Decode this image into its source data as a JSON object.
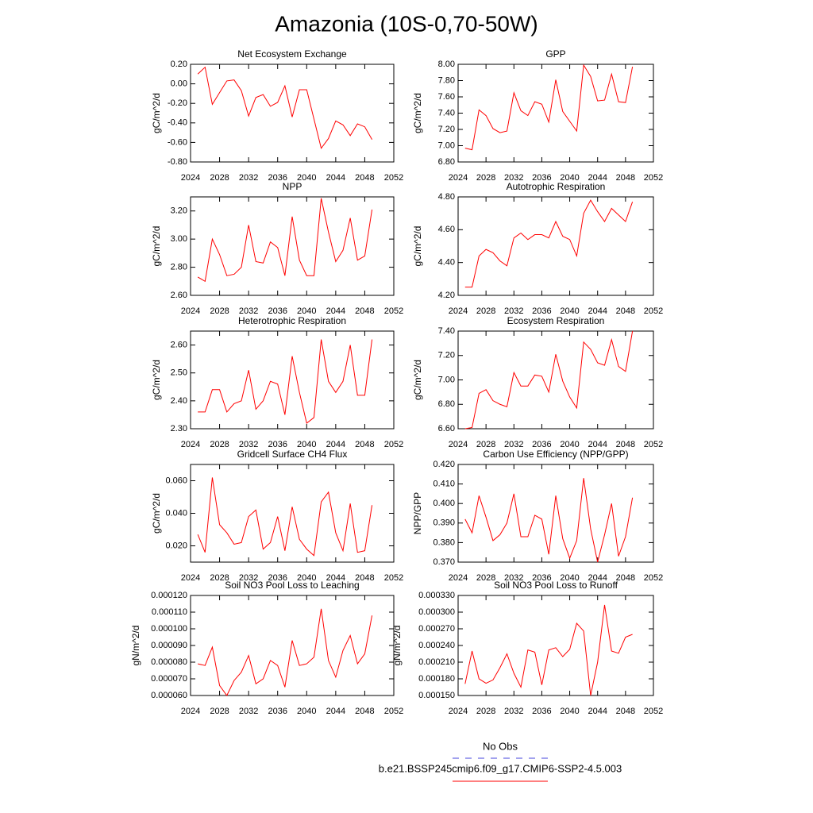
{
  "title": "Amazonia (10S-0,70-50W)",
  "legend": [
    {
      "name": "No Obs",
      "color": "#4444dd",
      "style": "dashed"
    },
    {
      "name": "b.e21.BSSP245cmip6.f09_g17.CMIP6-SSP2-4.5.003",
      "color": "#ff0000",
      "style": "solid"
    }
  ],
  "chart_data": [
    {
      "type": "line",
      "title": "Net Ecosystem Exchange",
      "y_label": "gC/m^2/d",
      "color": "#ff0000",
      "x": [
        2025,
        2026,
        2027,
        2028,
        2029,
        2030,
        2031,
        2032,
        2033,
        2034,
        2035,
        2036,
        2037,
        2038,
        2039,
        2040,
        2041,
        2042,
        2043,
        2044,
        2045,
        2046,
        2047,
        2048,
        2049
      ],
      "values": [
        0.1,
        0.17,
        -0.21,
        -0.09,
        0.03,
        0.04,
        -0.07,
        -0.33,
        -0.14,
        -0.11,
        -0.23,
        -0.19,
        -0.02,
        -0.34,
        -0.06,
        -0.06,
        -0.36,
        -0.66,
        -0.56,
        -0.38,
        -0.42,
        -0.53,
        -0.41,
        -0.44,
        -0.57
      ],
      "xlim": [
        2024,
        2052
      ],
      "xticks": [
        2024,
        2028,
        2032,
        2036,
        2040,
        2044,
        2048,
        2052
      ],
      "ylim": [
        -0.8,
        0.2
      ],
      "yticks": [
        {
          "value": 0.2,
          "label": "0.20"
        },
        {
          "value": 0,
          "label": "0.00"
        },
        {
          "value": -0.2,
          "label": "-0.20"
        },
        {
          "value": -0.4,
          "label": "-0.40"
        },
        {
          "value": -0.6,
          "label": "-0.60"
        },
        {
          "value": -0.8,
          "label": "-0.80"
        }
      ]
    },
    {
      "type": "line",
      "title": "GPP",
      "y_label": "gC/m^2/d",
      "color": "#ff0000",
      "x": [
        2025,
        2026,
        2027,
        2028,
        2029,
        2030,
        2031,
        2032,
        2033,
        2034,
        2035,
        2036,
        2037,
        2038,
        2039,
        2040,
        2041,
        2042,
        2043,
        2044,
        2045,
        2046,
        2047,
        2048,
        2049
      ],
      "values": [
        6.97,
        6.95,
        7.44,
        7.37,
        7.21,
        7.16,
        7.18,
        7.65,
        7.43,
        7.37,
        7.54,
        7.51,
        7.29,
        7.81,
        7.42,
        7.3,
        7.18,
        7.99,
        7.85,
        7.55,
        7.56,
        7.88,
        7.54,
        7.53,
        7.97
      ],
      "xlim": [
        2024,
        2052
      ],
      "xticks": [
        2024,
        2028,
        2032,
        2036,
        2040,
        2044,
        2048,
        2052
      ],
      "ylim": [
        6.8,
        8.0
      ],
      "yticks": [
        {
          "value": 8,
          "label": "8.00"
        },
        {
          "value": 7.8,
          "label": "7.80"
        },
        {
          "value": 7.6,
          "label": "7.60"
        },
        {
          "value": 7.4,
          "label": "7.40"
        },
        {
          "value": 7.2,
          "label": "7.20"
        },
        {
          "value": 7,
          "label": "7.00"
        },
        {
          "value": 6.8,
          "label": "6.80"
        }
      ]
    },
    {
      "type": "line",
      "title": "NPP",
      "y_label": "gC/m^2/d",
      "color": "#ff0000",
      "x": [
        2025,
        2026,
        2027,
        2028,
        2029,
        2030,
        2031,
        2032,
        2033,
        2034,
        2035,
        2036,
        2037,
        2038,
        2039,
        2040,
        2041,
        2042,
        2043,
        2044,
        2045,
        2046,
        2047,
        2048,
        2049
      ],
      "values": [
        2.73,
        2.7,
        3.0,
        2.89,
        2.74,
        2.75,
        2.8,
        3.1,
        2.84,
        2.83,
        2.98,
        2.94,
        2.74,
        3.16,
        2.85,
        2.74,
        2.74,
        3.29,
        3.05,
        2.84,
        2.92,
        3.15,
        2.85,
        2.88,
        3.21
      ],
      "xlim": [
        2024,
        2052
      ],
      "xticks": [
        2024,
        2028,
        2032,
        2036,
        2040,
        2044,
        2048,
        2052
      ],
      "ylim": [
        2.6,
        3.3
      ],
      "yticks": [
        {
          "value": 3.2,
          "label": "3.20"
        },
        {
          "value": 3,
          "label": "3.00"
        },
        {
          "value": 2.8,
          "label": "2.80"
        },
        {
          "value": 2.6,
          "label": "2.60"
        }
      ]
    },
    {
      "type": "line",
      "title": "Autotrophic Respiration",
      "y_label": "gC/m^2/d",
      "color": "#ff0000",
      "x": [
        2025,
        2026,
        2027,
        2028,
        2029,
        2030,
        2031,
        2032,
        2033,
        2034,
        2035,
        2036,
        2037,
        2038,
        2039,
        2040,
        2041,
        2042,
        2043,
        2044,
        2045,
        2046,
        2047,
        2048,
        2049
      ],
      "values": [
        4.25,
        4.25,
        4.44,
        4.48,
        4.46,
        4.41,
        4.38,
        4.55,
        4.58,
        4.54,
        4.57,
        4.57,
        4.55,
        4.65,
        4.56,
        4.54,
        4.44,
        4.7,
        4.78,
        4.71,
        4.65,
        4.73,
        4.69,
        4.65,
        4.77
      ],
      "xlim": [
        2024,
        2052
      ],
      "xticks": [
        2024,
        2028,
        2032,
        2036,
        2040,
        2044,
        2048,
        2052
      ],
      "ylim": [
        4.2,
        4.8
      ],
      "yticks": [
        {
          "value": 4.8,
          "label": "4.80"
        },
        {
          "value": 4.6,
          "label": "4.60"
        },
        {
          "value": 4.4,
          "label": "4.40"
        },
        {
          "value": 4.2,
          "label": "4.20"
        }
      ]
    },
    {
      "type": "line",
      "title": "Heterotrophic Respiration",
      "y_label": "gC/m^2/d",
      "color": "#ff0000",
      "x": [
        2025,
        2026,
        2027,
        2028,
        2029,
        2030,
        2031,
        2032,
        2033,
        2034,
        2035,
        2036,
        2037,
        2038,
        2039,
        2040,
        2041,
        2042,
        2043,
        2044,
        2045,
        2046,
        2047,
        2048,
        2049
      ],
      "values": [
        2.36,
        2.36,
        2.44,
        2.44,
        2.36,
        2.39,
        2.4,
        2.51,
        2.37,
        2.4,
        2.47,
        2.46,
        2.35,
        2.56,
        2.43,
        2.32,
        2.34,
        2.62,
        2.47,
        2.43,
        2.47,
        2.6,
        2.42,
        2.42,
        2.62
      ],
      "xlim": [
        2024,
        2052
      ],
      "xticks": [
        2024,
        2028,
        2032,
        2036,
        2040,
        2044,
        2048,
        2052
      ],
      "ylim": [
        2.3,
        2.65
      ],
      "yticks": [
        {
          "value": 2.6,
          "label": "2.60"
        },
        {
          "value": 2.5,
          "label": "2.50"
        },
        {
          "value": 2.4,
          "label": "2.40"
        },
        {
          "value": 2.3,
          "label": "2.30"
        }
      ]
    },
    {
      "type": "line",
      "title": "Ecosystem Respiration",
      "y_label": "gC/m^2/d",
      "color": "#ff0000",
      "x": [
        2025,
        2026,
        2027,
        2028,
        2029,
        2030,
        2031,
        2032,
        2033,
        2034,
        2035,
        2036,
        2037,
        2038,
        2039,
        2040,
        2041,
        2042,
        2043,
        2044,
        2045,
        2046,
        2047,
        2048,
        2049
      ],
      "values": [
        6.6,
        6.61,
        6.89,
        6.92,
        6.83,
        6.8,
        6.78,
        7.06,
        6.95,
        6.95,
        7.04,
        7.03,
        6.9,
        7.21,
        6.99,
        6.86,
        6.77,
        7.31,
        7.25,
        7.14,
        7.12,
        7.33,
        7.11,
        7.07,
        7.4
      ],
      "xlim": [
        2024,
        2052
      ],
      "xticks": [
        2024,
        2028,
        2032,
        2036,
        2040,
        2044,
        2048,
        2052
      ],
      "ylim": [
        6.6,
        7.4
      ],
      "yticks": [
        {
          "value": 7.4,
          "label": "7.40"
        },
        {
          "value": 7.2,
          "label": "7.20"
        },
        {
          "value": 7,
          "label": "7.00"
        },
        {
          "value": 6.8,
          "label": "6.80"
        },
        {
          "value": 6.6,
          "label": "6.60"
        }
      ]
    },
    {
      "type": "line",
      "title": "Gridcell Surface CH4 Flux",
      "y_label": "gC/m^2/d",
      "color": "#ff0000",
      "x": [
        2025,
        2026,
        2027,
        2028,
        2029,
        2030,
        2031,
        2032,
        2033,
        2034,
        2035,
        2036,
        2037,
        2038,
        2039,
        2040,
        2041,
        2042,
        2043,
        2044,
        2045,
        2046,
        2047,
        2048,
        2049
      ],
      "values": [
        0.027,
        0.016,
        0.062,
        0.033,
        0.028,
        0.021,
        0.022,
        0.038,
        0.042,
        0.018,
        0.022,
        0.038,
        0.017,
        0.044,
        0.024,
        0.018,
        0.014,
        0.047,
        0.053,
        0.028,
        0.017,
        0.046,
        0.016,
        0.017,
        0.045
      ],
      "xlim": [
        2024,
        2052
      ],
      "xticks": [
        2024,
        2028,
        2032,
        2036,
        2040,
        2044,
        2048,
        2052
      ],
      "ylim": [
        0.01,
        0.07
      ],
      "yticks": [
        {
          "value": 0.06,
          "label": "0.060"
        },
        {
          "value": 0.04,
          "label": "0.040"
        },
        {
          "value": 0.02,
          "label": "0.020"
        }
      ]
    },
    {
      "type": "line",
      "title": "Carbon Use Efficiency (NPP/GPP)",
      "y_label": "NPP/GPP",
      "color": "#ff0000",
      "x": [
        2025,
        2026,
        2027,
        2028,
        2029,
        2030,
        2031,
        2032,
        2033,
        2034,
        2035,
        2036,
        2037,
        2038,
        2039,
        2040,
        2041,
        2042,
        2043,
        2044,
        2045,
        2046,
        2047,
        2048,
        2049
      ],
      "values": [
        0.392,
        0.385,
        0.404,
        0.393,
        0.381,
        0.384,
        0.39,
        0.405,
        0.383,
        0.383,
        0.394,
        0.392,
        0.374,
        0.404,
        0.382,
        0.372,
        0.381,
        0.413,
        0.387,
        0.37,
        0.384,
        0.4,
        0.373,
        0.383,
        0.403
      ],
      "xlim": [
        2024,
        2052
      ],
      "xticks": [
        2024,
        2028,
        2032,
        2036,
        2040,
        2044,
        2048,
        2052
      ],
      "ylim": [
        0.37,
        0.42
      ],
      "yticks": [
        {
          "value": 0.42,
          "label": "0.420"
        },
        {
          "value": 0.41,
          "label": "0.410"
        },
        {
          "value": 0.4,
          "label": "0.400"
        },
        {
          "value": 0.39,
          "label": "0.390"
        },
        {
          "value": 0.38,
          "label": "0.380"
        },
        {
          "value": 0.37,
          "label": "0.370"
        }
      ]
    },
    {
      "type": "line",
      "title": "Soil NO3 Pool Loss to Leaching",
      "y_label": "gN/m^2/d",
      "color": "#ff0000",
      "x": [
        2025,
        2026,
        2027,
        2028,
        2029,
        2030,
        2031,
        2032,
        2033,
        2034,
        2035,
        2036,
        2037,
        2038,
        2039,
        2040,
        2041,
        2042,
        2043,
        2044,
        2045,
        2046,
        2047,
        2048,
        2049
      ],
      "values": [
        7.9e-05,
        7.8e-05,
        8.9e-05,
        6.6e-05,
        6e-05,
        6.9e-05,
        7.4e-05,
        8.4e-05,
        6.7e-05,
        7e-05,
        8.1e-05,
        7.8e-05,
        6.5e-05,
        9.3e-05,
        7.8e-05,
        7.9e-05,
        8.3e-05,
        0.000112,
        8.1e-05,
        7.1e-05,
        8.7e-05,
        9.6e-05,
        7.9e-05,
        8.5e-05,
        0.000108
      ],
      "xlim": [
        2024,
        2052
      ],
      "xticks": [
        2024,
        2028,
        2032,
        2036,
        2040,
        2044,
        2048,
        2052
      ],
      "ylim": [
        6e-05,
        0.00012
      ],
      "yticks": [
        {
          "value": 0.00012,
          "label": "0.000120"
        },
        {
          "value": 0.00011,
          "label": "0.000110"
        },
        {
          "value": 0.0001,
          "label": "0.000100"
        },
        {
          "value": 9e-05,
          "label": "0.000090"
        },
        {
          "value": 8e-05,
          "label": "0.000080"
        },
        {
          "value": 7e-05,
          "label": "0.000070"
        },
        {
          "value": 6e-05,
          "label": "0.000060"
        }
      ]
    },
    {
      "type": "line",
      "title": "Soil NO3 Pool Loss to Runoff",
      "y_label": "gN/m^2/d",
      "color": "#ff0000",
      "x": [
        2025,
        2026,
        2027,
        2028,
        2029,
        2030,
        2031,
        2032,
        2033,
        2034,
        2035,
        2036,
        2037,
        2038,
        2039,
        2040,
        2041,
        2042,
        2043,
        2044,
        2045,
        2046,
        2047,
        2048,
        2049
      ],
      "values": [
        0.000171,
        0.00023,
        0.00018,
        0.000172,
        0.000178,
        0.0002,
        0.000225,
        0.00019,
        0.000165,
        0.000232,
        0.000228,
        0.000169,
        0.000232,
        0.000236,
        0.00022,
        0.000233,
        0.00028,
        0.000266,
        0.00015,
        0.00021,
        0.000313,
        0.00023,
        0.000226,
        0.000255,
        0.00026
      ],
      "xlim": [
        2024,
        2052
      ],
      "xticks": [
        2024,
        2028,
        2032,
        2036,
        2040,
        2044,
        2048,
        2052
      ],
      "ylim": [
        0.00015,
        0.00033
      ],
      "yticks": [
        {
          "value": 0.00033,
          "label": "0.000330"
        },
        {
          "value": 0.0003,
          "label": "0.000300"
        },
        {
          "value": 0.00027,
          "label": "0.000270"
        },
        {
          "value": 0.00024,
          "label": "0.000240"
        },
        {
          "value": 0.00021,
          "label": "0.000210"
        },
        {
          "value": 0.00018,
          "label": "0.000180"
        },
        {
          "value": 0.00015,
          "label": "0.000150"
        }
      ]
    }
  ]
}
